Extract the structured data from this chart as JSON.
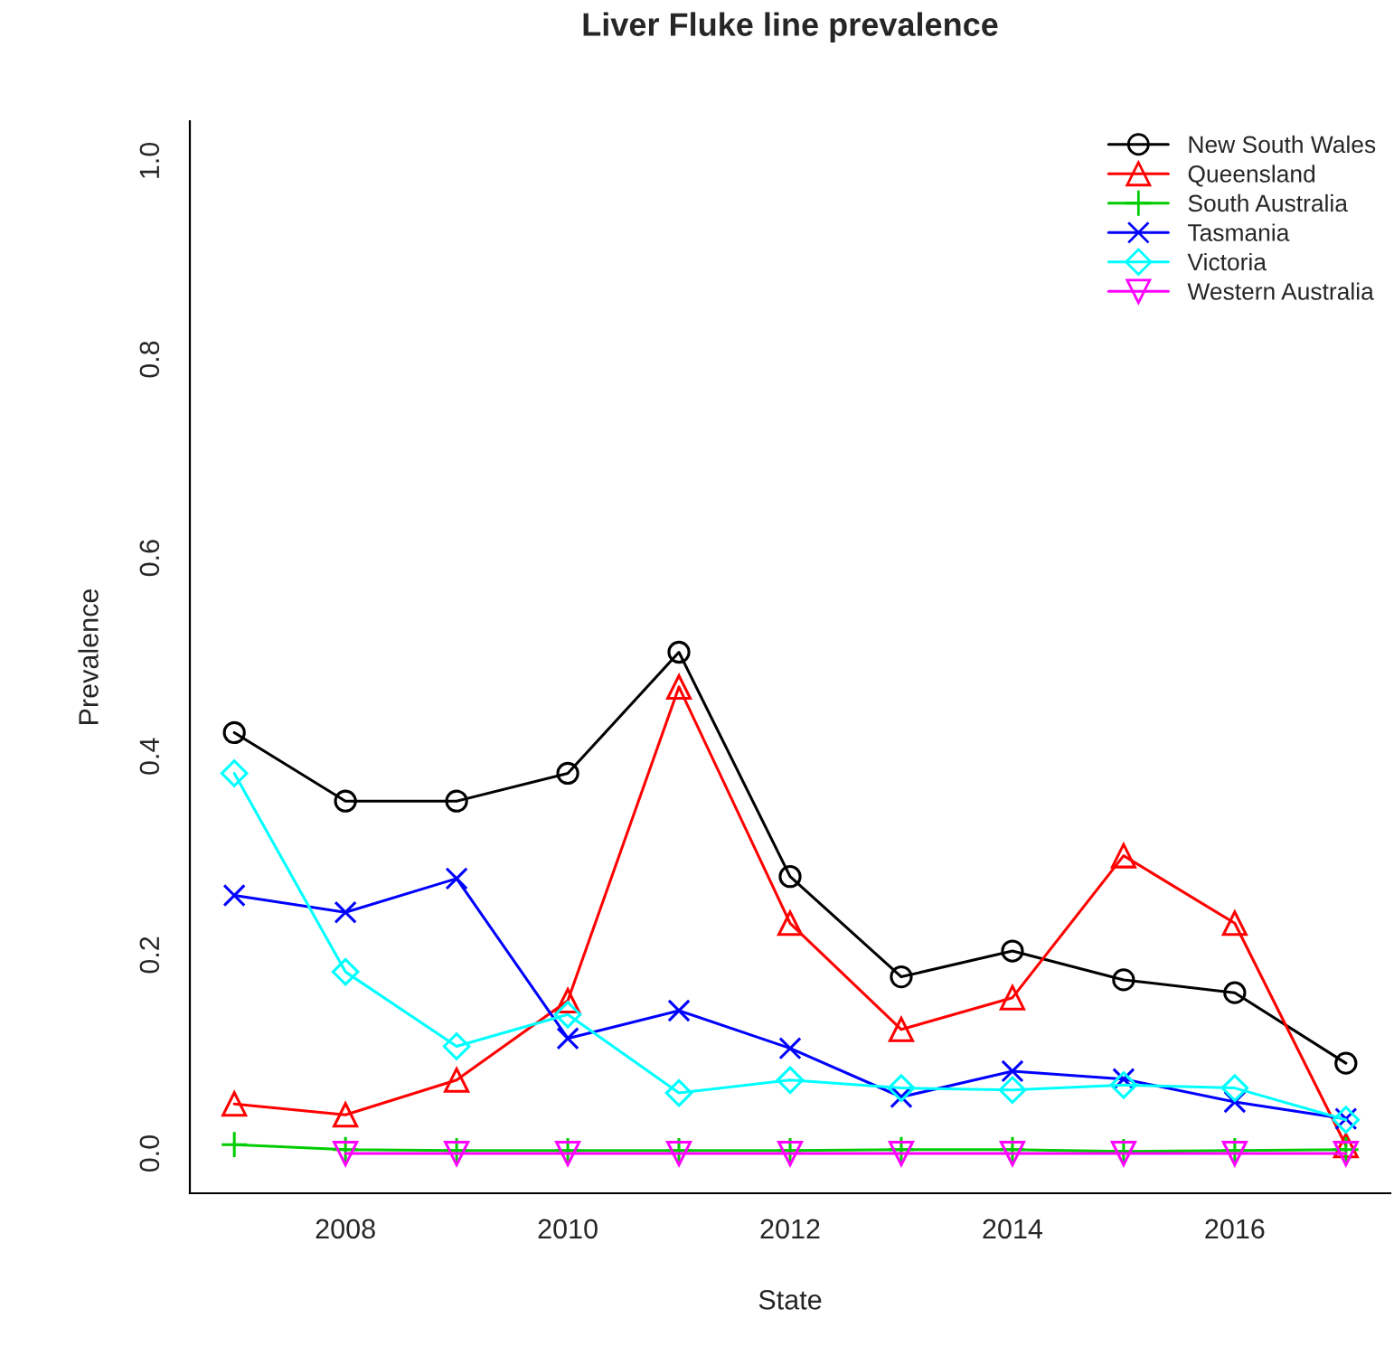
{
  "chart_data": {
    "type": "line",
    "title": "Liver Fluke line prevalence",
    "xlabel": "State",
    "ylabel": "Prevalence",
    "x": [
      2007,
      2008,
      2009,
      2010,
      2011,
      2012,
      2013,
      2014,
      2015,
      2016,
      2017
    ],
    "xlim": [
      2006.6,
      2017.4
    ],
    "xticks": [
      2008,
      2010,
      2012,
      2014,
      2016
    ],
    "ylim": [
      -0.04,
      1.04
    ],
    "yticks": [
      {
        "value": 0,
        "label": "0.0"
      },
      0.2,
      0.4,
      0.6,
      0.8,
      {
        "value": 1,
        "label": "1.0"
      }
    ],
    "grid": false,
    "legend": "top right",
    "line_style": "solid",
    "series": [
      {
        "name": "New South Wales",
        "color": "#000000",
        "marker": "circle",
        "values": [
          0.424,
          0.355,
          0.355,
          0.383,
          0.505,
          0.279,
          0.178,
          0.204,
          0.175,
          0.162,
          0.091
        ]
      },
      {
        "name": "Queensland",
        "color": "#ff0000",
        "marker": "triangle",
        "values": [
          0.05,
          0.039,
          0.074,
          0.154,
          0.47,
          0.232,
          0.125,
          0.157,
          0.3,
          0.232,
          0.008
        ]
      },
      {
        "name": "South Australia",
        "color": "#00cd00",
        "marker": "plus",
        "values": [
          0.009,
          0.004,
          0.003,
          0.003,
          0.003,
          0.003,
          0.004,
          0.004,
          0.002,
          0.003,
          0.004
        ]
      },
      {
        "name": "Tasmania",
        "color": "#0000ff",
        "marker": "x",
        "values": [
          0.26,
          0.243,
          0.277,
          0.116,
          0.144,
          0.106,
          0.057,
          0.083,
          0.075,
          0.052,
          0.035
        ]
      },
      {
        "name": "Victoria",
        "color": "#00ffff",
        "marker": "diamond",
        "values": [
          0.383,
          0.183,
          0.108,
          0.14,
          0.061,
          0.074,
          0.066,
          0.064,
          0.069,
          0.066,
          0.034
        ]
      },
      {
        "name": "Western Australia",
        "color": "#ff00ff",
        "marker": "triangle-down",
        "values": [
          null,
          0,
          0,
          0,
          0,
          0,
          0,
          0,
          0,
          0,
          0
        ]
      }
    ]
  }
}
